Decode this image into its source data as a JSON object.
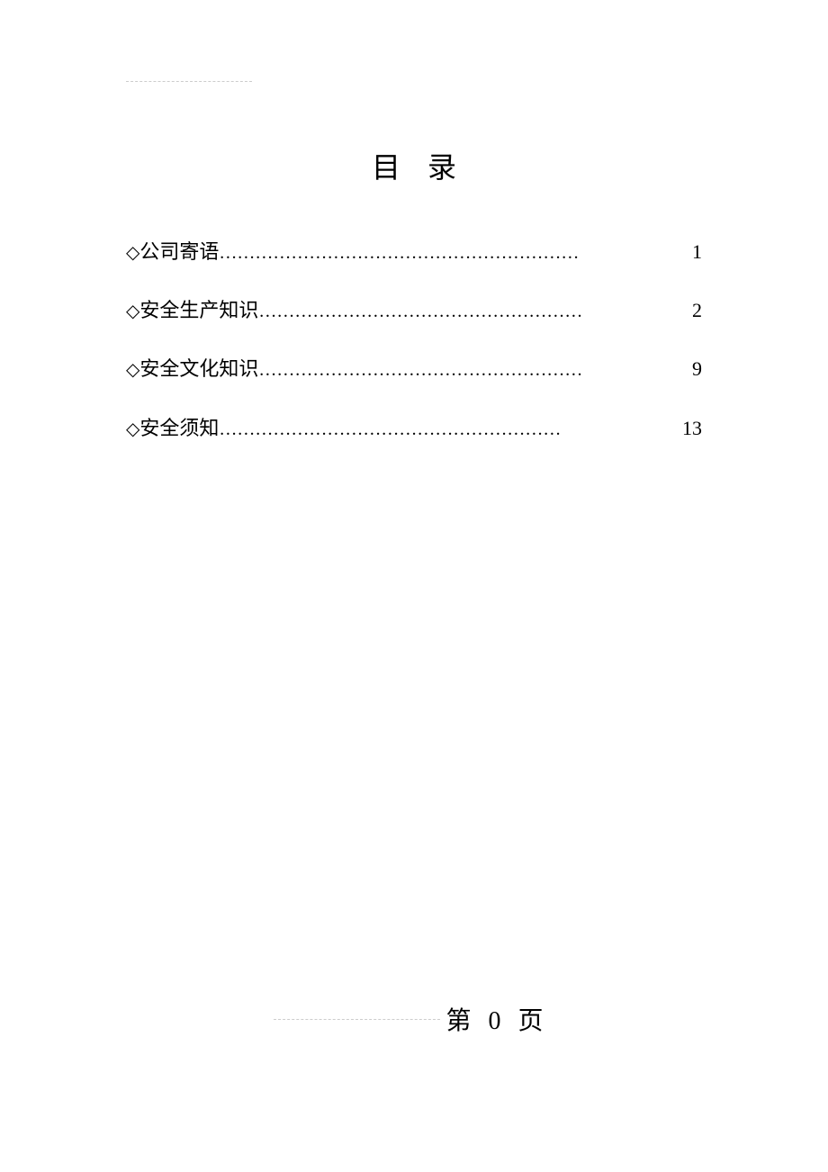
{
  "title": "目录",
  "toc": {
    "bullet_char": "◇",
    "items": [
      {
        "label": "公司寄语",
        "dots": "……………………………………………………",
        "page": "1"
      },
      {
        "label": "安全生产知识",
        "dots": "………………………………………………",
        "page": "2"
      },
      {
        "label": "安全文化知识",
        "dots": "………………………………………………",
        "page": "9"
      },
      {
        "label": "安全须知",
        "dots": "…………………………………………………",
        "page": " 13"
      }
    ]
  },
  "footer": {
    "prefix": "第 ",
    "page_number": "0",
    "suffix": " 页"
  },
  "colors": {
    "background": "#ffffff",
    "text": "#000000",
    "divider": "#cccccc"
  },
  "typography": {
    "title_fontsize": 32,
    "body_fontsize": 22,
    "footer_fontsize": 28,
    "font_family": "SimSun"
  }
}
